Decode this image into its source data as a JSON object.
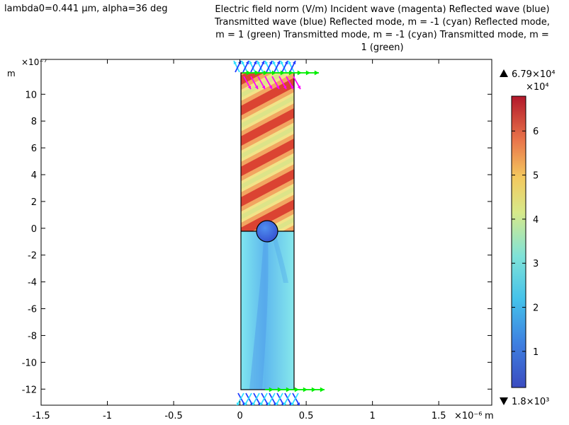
{
  "title": {
    "left": "lambda0=0.441 µm, alpha=36 deg",
    "right_lines": [
      "Electric field norm (V/m)  Incident wave (magenta)  Reflected wave (blue)",
      "Transmitted wave (blue)  Reflected mode, m = -1 (cyan)  Reflected mode,",
      "m = 1 (green)  Transmitted mode, m = -1 (cyan)  Transmitted mode, m =",
      "1 (green)"
    ]
  },
  "chart_data": {
    "type": "heatmap",
    "quantity": "Electric field norm (V/m)",
    "x_axis": {
      "range": [
        -1.5,
        1.9
      ],
      "ticks": [
        -1.5,
        -1,
        -0.5,
        0,
        0.5,
        1,
        1.5
      ],
      "tick_labels": [
        "-1.5",
        "-1",
        "-0.5",
        "0",
        "0.5",
        "1",
        "1.5"
      ],
      "exponent_label": "×10⁻⁶",
      "unit": "m"
    },
    "y_axis": {
      "range": [
        -13.2,
        12.6
      ],
      "ticks": [
        -12,
        -10,
        -8,
        -6,
        -4,
        -2,
        0,
        2,
        4,
        6,
        8,
        10
      ],
      "tick_labels": [
        "-12",
        "-10",
        "-8",
        "-6",
        "-4",
        "-2",
        "0",
        "2",
        "4",
        "6",
        "8",
        "10"
      ],
      "exponent_label": "×10⁻⁷",
      "unit": "m"
    },
    "domain": {
      "x": [
        0,
        0.4
      ],
      "y": [
        -12,
        12
      ]
    },
    "scatterer": {
      "center": [
        0.2,
        0
      ],
      "radius": 0.8
    },
    "interface_y": 0,
    "colorbar": {
      "max_label": "6.79×10⁴",
      "min_label": "1.8×10³",
      "scale_label": "×10⁴",
      "range": [
        0.18,
        6.79
      ],
      "ticks": [
        1,
        2,
        3,
        4,
        5,
        6
      ],
      "tick_labels": [
        "1",
        "2",
        "3",
        "4",
        "5",
        "6"
      ]
    },
    "arrows": [
      {
        "name": "Incident wave",
        "color": "#ff00ff"
      },
      {
        "name": "Reflected wave",
        "color": "#1e3cff"
      },
      {
        "name": "Transmitted wave",
        "color": "#1e3cff"
      },
      {
        "name": "Reflected mode, m = -1",
        "color": "#30e0ff"
      },
      {
        "name": "Reflected mode, m = 1",
        "color": "#00ee00"
      },
      {
        "name": "Transmitted mode, m = -1",
        "color": "#30e0ff"
      },
      {
        "name": "Transmitted mode, m = 1",
        "color": "#00ee00"
      }
    ]
  }
}
